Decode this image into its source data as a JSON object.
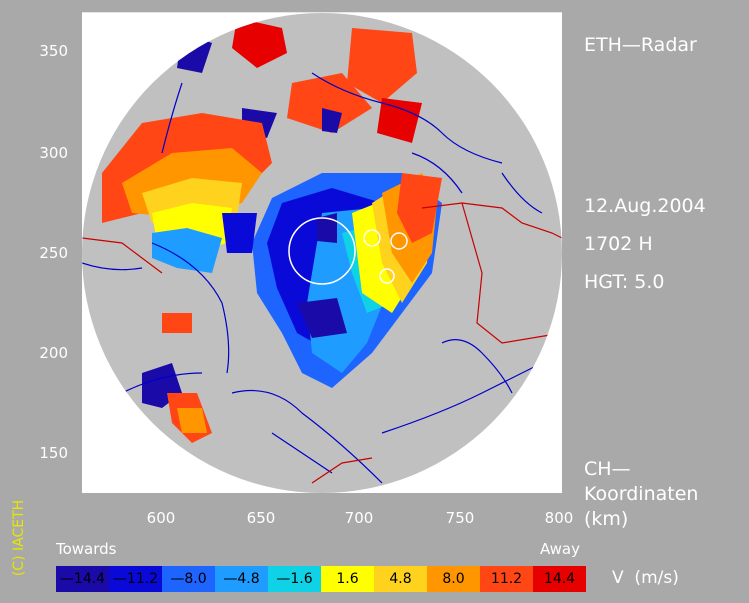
{
  "title": "ETH—Radar",
  "date": "12.Aug.2004",
  "time": "1702 H",
  "height": "HGT: 5.0",
  "coords_line1": "CH—",
  "coords_line2": "Koordinaten",
  "coords_line3": "(km)",
  "copyright": "(C) IACETH",
  "y_ticks": [
    "350",
    "300",
    "250",
    "200",
    "150"
  ],
  "x_ticks": [
    "600",
    "650",
    "700",
    "750",
    "800"
  ],
  "legend_towards": "Towards",
  "legend_away": "Away",
  "legend_units": "V  (m/s)",
  "legend": [
    {
      "label": "—14.4",
      "color": "#1a0aa8",
      "text": "#000000"
    },
    {
      "label": "—11.2",
      "color": "#0a0ad8",
      "text": "#000000"
    },
    {
      "label": "—8.0",
      "color": "#1e64ff",
      "text": "#000000"
    },
    {
      "label": "—4.8",
      "color": "#1e9cff",
      "text": "#000000"
    },
    {
      "label": "—1.6",
      "color": "#10d2e6",
      "text": "#000000"
    },
    {
      "label": "1.6",
      "color": "#ffff00",
      "text": "#000000"
    },
    {
      "label": "4.8",
      "color": "#ffd21e",
      "text": "#000000"
    },
    {
      "label": "8.0",
      "color": "#ff9600",
      "text": "#000000"
    },
    {
      "label": "11.2",
      "color": "#ff4614",
      "text": "#000000"
    },
    {
      "label": "14.4",
      "color": "#e60000",
      "text": "#000000"
    }
  ]
}
